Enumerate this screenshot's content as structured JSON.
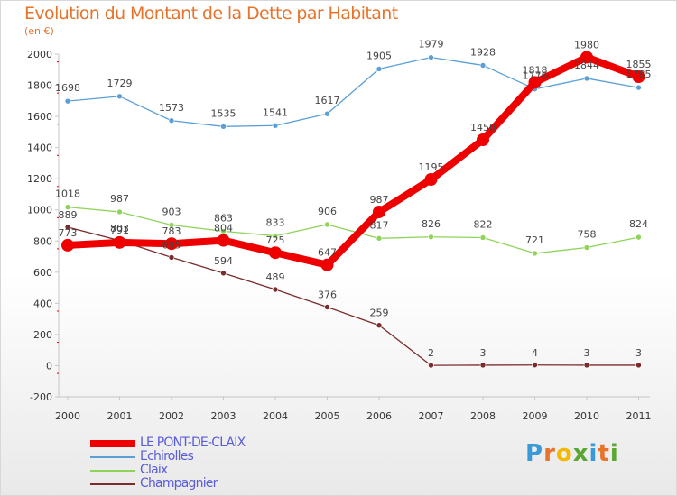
{
  "header": {
    "title": "Evolution du Montant de la Dette par Habitant",
    "subtitle": "(en €)"
  },
  "logo": {
    "letters": [
      {
        "char": "P",
        "color": "#3a9ad9"
      },
      {
        "char": "r",
        "color": "#e8732a"
      },
      {
        "char": "o",
        "color": "#f2b900"
      },
      {
        "char": "x",
        "color": "#5aa833"
      },
      {
        "char": "i",
        "color": "#3a9ad9"
      },
      {
        "char": "t",
        "color": "#e8732a"
      },
      {
        "char": "i",
        "color": "#5aa833"
      }
    ]
  },
  "chart_data": {
    "type": "line",
    "title": "Evolution du Montant de la Dette par Habitant",
    "subtitle": "(en €)",
    "x": [
      "2000",
      "2001",
      "2002",
      "2003",
      "2004",
      "2005",
      "2006",
      "2007",
      "2008",
      "2009",
      "2010",
      "2011"
    ],
    "ylim": [
      -200,
      2000
    ],
    "yticks": [
      -200,
      0,
      200,
      400,
      600,
      800,
      1000,
      1200,
      1400,
      1600,
      1800,
      2000
    ],
    "grid": false,
    "legend_position": "bottom-left",
    "series": [
      {
        "name": "LE PONT-DE-CLAIX",
        "color": "#ee0000",
        "values": [
          773,
          791,
          783,
          804,
          725,
          647,
          987,
          1195,
          1450,
          1818,
          1980,
          1855
        ]
      },
      {
        "name": "Echirolles",
        "color": "#5b9fd6",
        "values": [
          1698,
          1729,
          1573,
          1535,
          1541,
          1617,
          1905,
          1979,
          1928,
          1776,
          1844,
          1785
        ]
      },
      {
        "name": "Claix",
        "color": "#8fd45a",
        "values": [
          1018,
          987,
          903,
          863,
          833,
          906,
          817,
          826,
          822,
          721,
          758,
          824
        ]
      },
      {
        "name": "Champagnier",
        "color": "#7a2b2b",
        "values": [
          889,
          803,
          695,
          594,
          489,
          376,
          259,
          2,
          3,
          4,
          3,
          3
        ]
      }
    ],
    "data_labels": {
      "LE PONT-DE-CLAIX": [
        "773",
        "791",
        "783",
        "804",
        "725",
        "647",
        "987",
        "1195",
        "1450",
        "1818",
        "1980",
        "1855"
      ],
      "Echirolles": [
        "1698",
        "1729",
        "1573",
        "1535",
        "1541",
        "1617",
        "1905",
        "1979",
        "1928",
        "1776",
        "1844",
        "1785"
      ],
      "Claix": [
        "1018",
        "987",
        "903",
        "863",
        "833",
        "906",
        "817",
        "826",
        "822",
        "721",
        "758",
        "824"
      ],
      "Champagnier": [
        "889",
        "803",
        "695",
        "594",
        "489",
        "376",
        "259",
        "2",
        "3",
        "4",
        "3",
        "3"
      ]
    }
  }
}
